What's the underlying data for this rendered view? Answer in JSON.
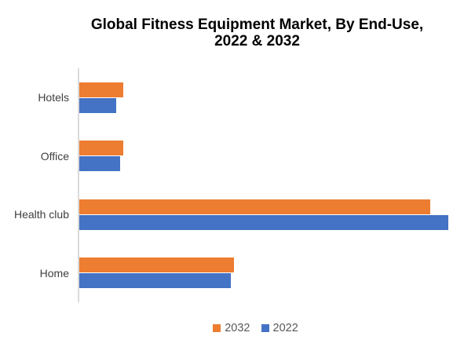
{
  "title": {
    "lines": [
      "Global Fitness Equipment Market, By End-Use,",
      "2022 & 2032"
    ],
    "color": "#000000"
  },
  "legend": {
    "items": [
      {
        "label": "2032",
        "color": "#ED7D31"
      },
      {
        "label": "2022",
        "color": "#4472C4"
      }
    ],
    "text_color": "#595959",
    "position": "bottom"
  },
  "chart_data": {
    "type": "bar",
    "orientation": "horizontal",
    "title": "Global Fitness Equipment Market, By End-Use, 2022 & 2032",
    "categories": [
      "Hotels",
      "Office",
      "Health club",
      "Home"
    ],
    "series": [
      {
        "name": "2032",
        "color": "#ED7D31",
        "values": [
          12,
          12,
          95,
          42
        ]
      },
      {
        "name": "2022",
        "color": "#4472C4",
        "values": [
          10,
          11,
          100,
          41
        ]
      }
    ],
    "value_axis_labels_shown": false,
    "data_labels_shown": false,
    "values_unit": "relative, estimated as percent of longest bar (no numeric axis shown)",
    "xlim": [
      0,
      100
    ],
    "grid": false,
    "legend_position": "bottom",
    "xlabel": "",
    "ylabel": "",
    "category_axis": {
      "line_color": "#DADADA",
      "label_color": "#3F3F3F"
    }
  }
}
